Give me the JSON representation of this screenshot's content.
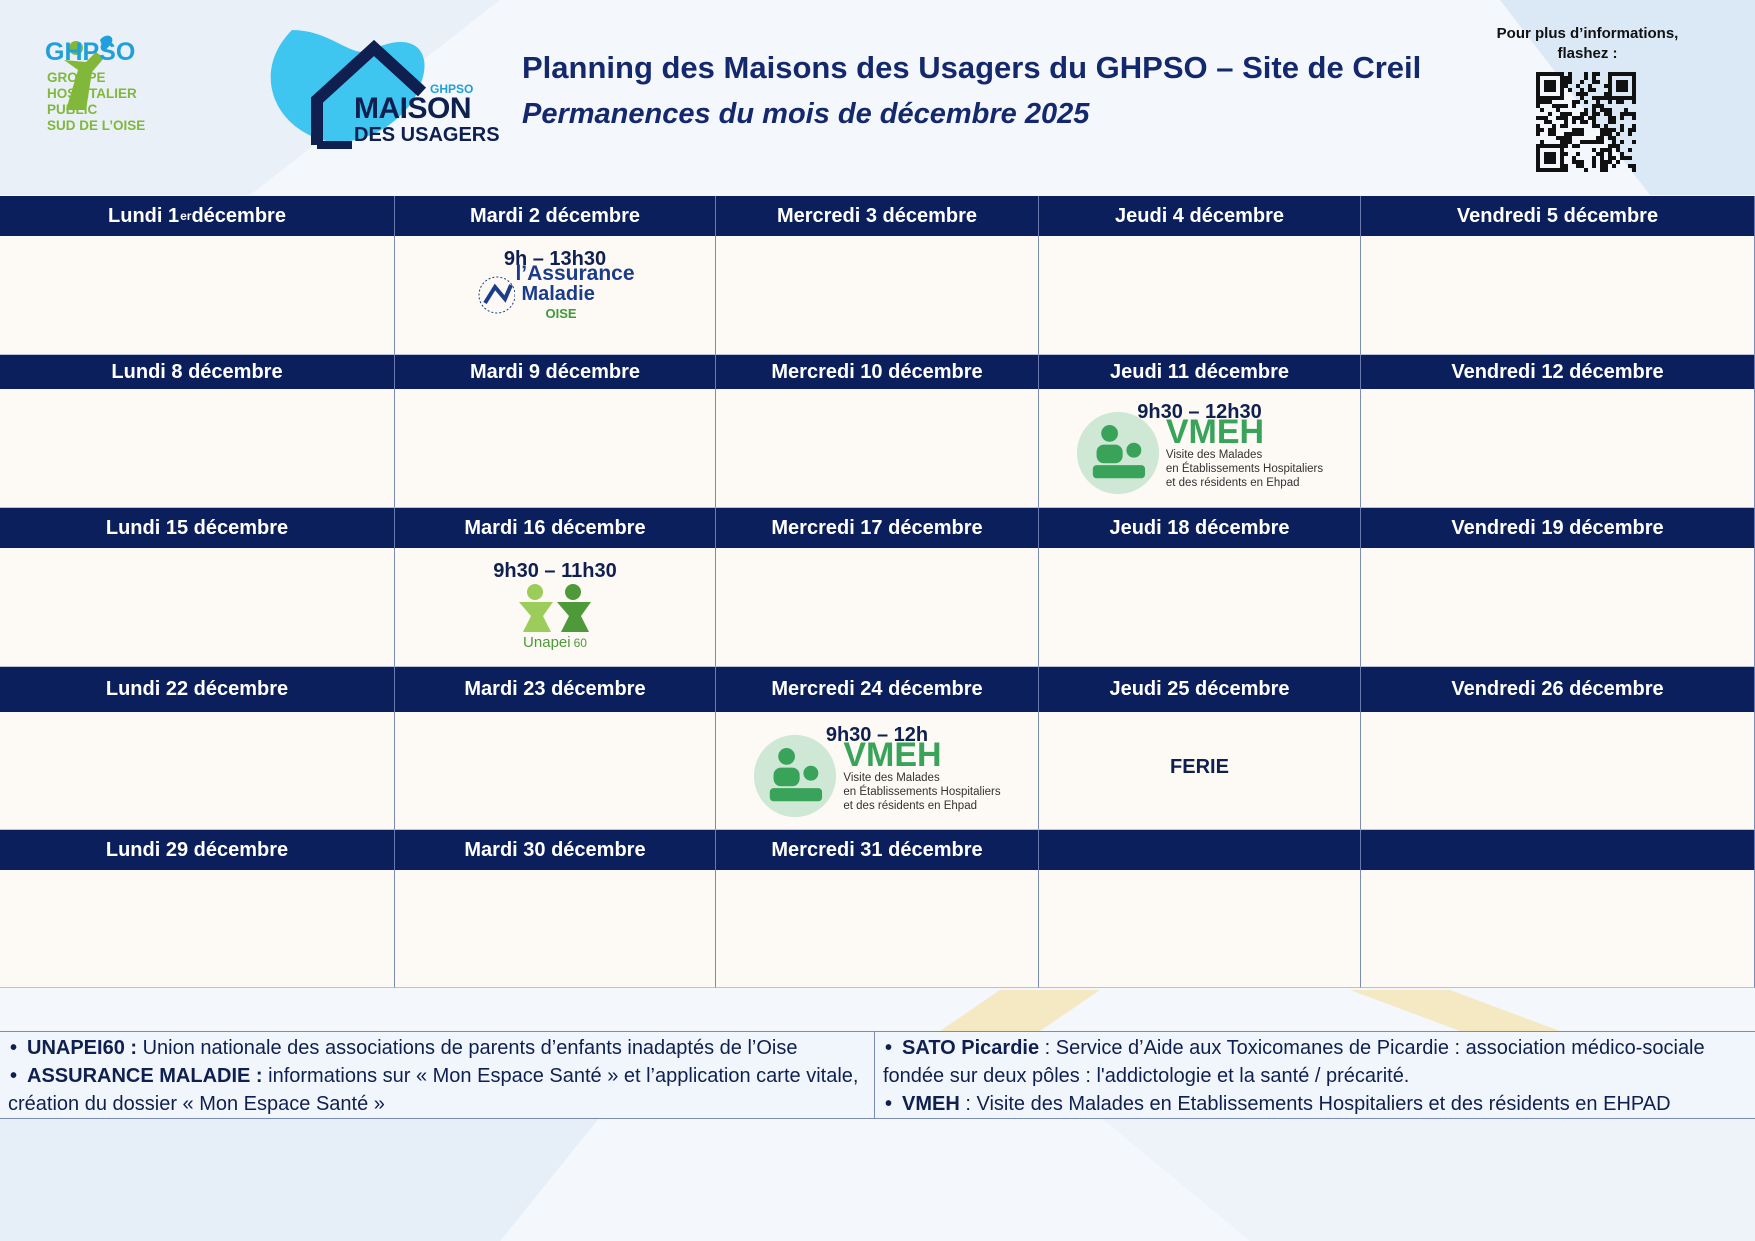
{
  "header": {
    "title": "Planning des Maisons des Usagers du GHPSO – Site de Creil",
    "subtitle": "Permanences du mois de décembre 2025",
    "qr_text": "Pour plus d’informations, flashez :",
    "ghpso_logo": {
      "name": "GHPSO",
      "lines": [
        "GROUPE",
        "HOSPITALIER",
        "PUBLIC",
        "SUD DE L’OISE"
      ]
    },
    "maison_logo": {
      "small": "GHPSO",
      "big": "MAISON",
      "bottom": "DES USAGERS"
    }
  },
  "calendar": {
    "weeks": [
      {
        "days": [
          {
            "text": "Lundi 1",
            "sup": "er",
            "after": " décembre"
          },
          {
            "text": "Mardi 2 décembre"
          },
          {
            "text": "Mercredi 3 décembre"
          },
          {
            "text": "Jeudi 4 décembre"
          },
          {
            "text": "Vendredi 5 décembre"
          }
        ],
        "cells": [
          null,
          {
            "time": "9h – 13h30",
            "assurance": {
              "line1": "l’Assurance",
              "line2": "Maladie",
              "line3": "OISE"
            }
          },
          null,
          null,
          null
        ]
      },
      {
        "days": [
          {
            "text": "Lundi 8 décembre"
          },
          {
            "text": "Mardi 9 décembre"
          },
          {
            "text": "Mercredi 10 décembre"
          },
          {
            "text": "Jeudi 11 décembre"
          },
          {
            "text": "Vendredi 12 décembre"
          }
        ],
        "cells": [
          null,
          null,
          null,
          {
            "time": "9h30 – 12h30",
            "vmeh": {
              "name": "VMEH",
              "lines": [
                "Visite des Malades",
                "en Établissements Hospitaliers",
                "et des résidents en Ehpad"
              ]
            }
          },
          null
        ]
      },
      {
        "days": [
          {
            "text": "Lundi 15 décembre"
          },
          {
            "text": "Mardi 16 décembre"
          },
          {
            "text": "Mercredi 17 décembre"
          },
          {
            "text": "Jeudi 18 décembre"
          },
          {
            "text": "Vendredi 19 décembre"
          }
        ],
        "cells": [
          null,
          {
            "time": "9h30 – 11h30",
            "unapei": {
              "name": "Unapei",
              "num": "60"
            }
          },
          null,
          null,
          null
        ]
      },
      {
        "days": [
          {
            "text": "Lundi 22 décembre"
          },
          {
            "text": "Mardi 23 décembre"
          },
          {
            "text": "Mercredi 24 décembre"
          },
          {
            "text": "Jeudi 25 décembre"
          },
          {
            "text": "Vendredi 26 décembre"
          }
        ],
        "cells": [
          null,
          null,
          {
            "time": "9h30 – 12h",
            "vmeh": {
              "name": "VMEH",
              "lines": [
                "Visite des Malades",
                "en Établissements Hospitaliers",
                "et des résidents en Ehpad"
              ]
            }
          },
          {
            "text": "FERIE"
          },
          null
        ]
      },
      {
        "days": [
          {
            "text": "Lundi 29 décembre"
          },
          {
            "text": "Mardi 30 décembre"
          },
          {
            "text": "Mercredi 31 décembre"
          },
          null,
          null
        ],
        "cells": [
          null,
          null,
          null,
          null,
          null
        ]
      }
    ]
  },
  "legend": {
    "left": [
      {
        "term": "UNAPEI60 :",
        "desc": " Union nationale des associations de parents d’enfants inadaptés de l’Oise"
      },
      {
        "term": "ASSURANCE MALADIE :",
        "desc": " informations sur « Mon Espace Santé » et l’application carte vitale, création du dossier « Mon Espace Santé »"
      }
    ],
    "right": [
      {
        "term": "SATO Picardie",
        "desc": " :  Service d’Aide aux Toxicomanes de Picardie : association médico-sociale fondée sur deux pôles : l'addictologie et la santé / précarité."
      },
      {
        "term": "VMEH",
        "desc": " : Visite des Malades en Etablissements Hospitaliers et des résidents en EHPAD"
      }
    ]
  }
}
